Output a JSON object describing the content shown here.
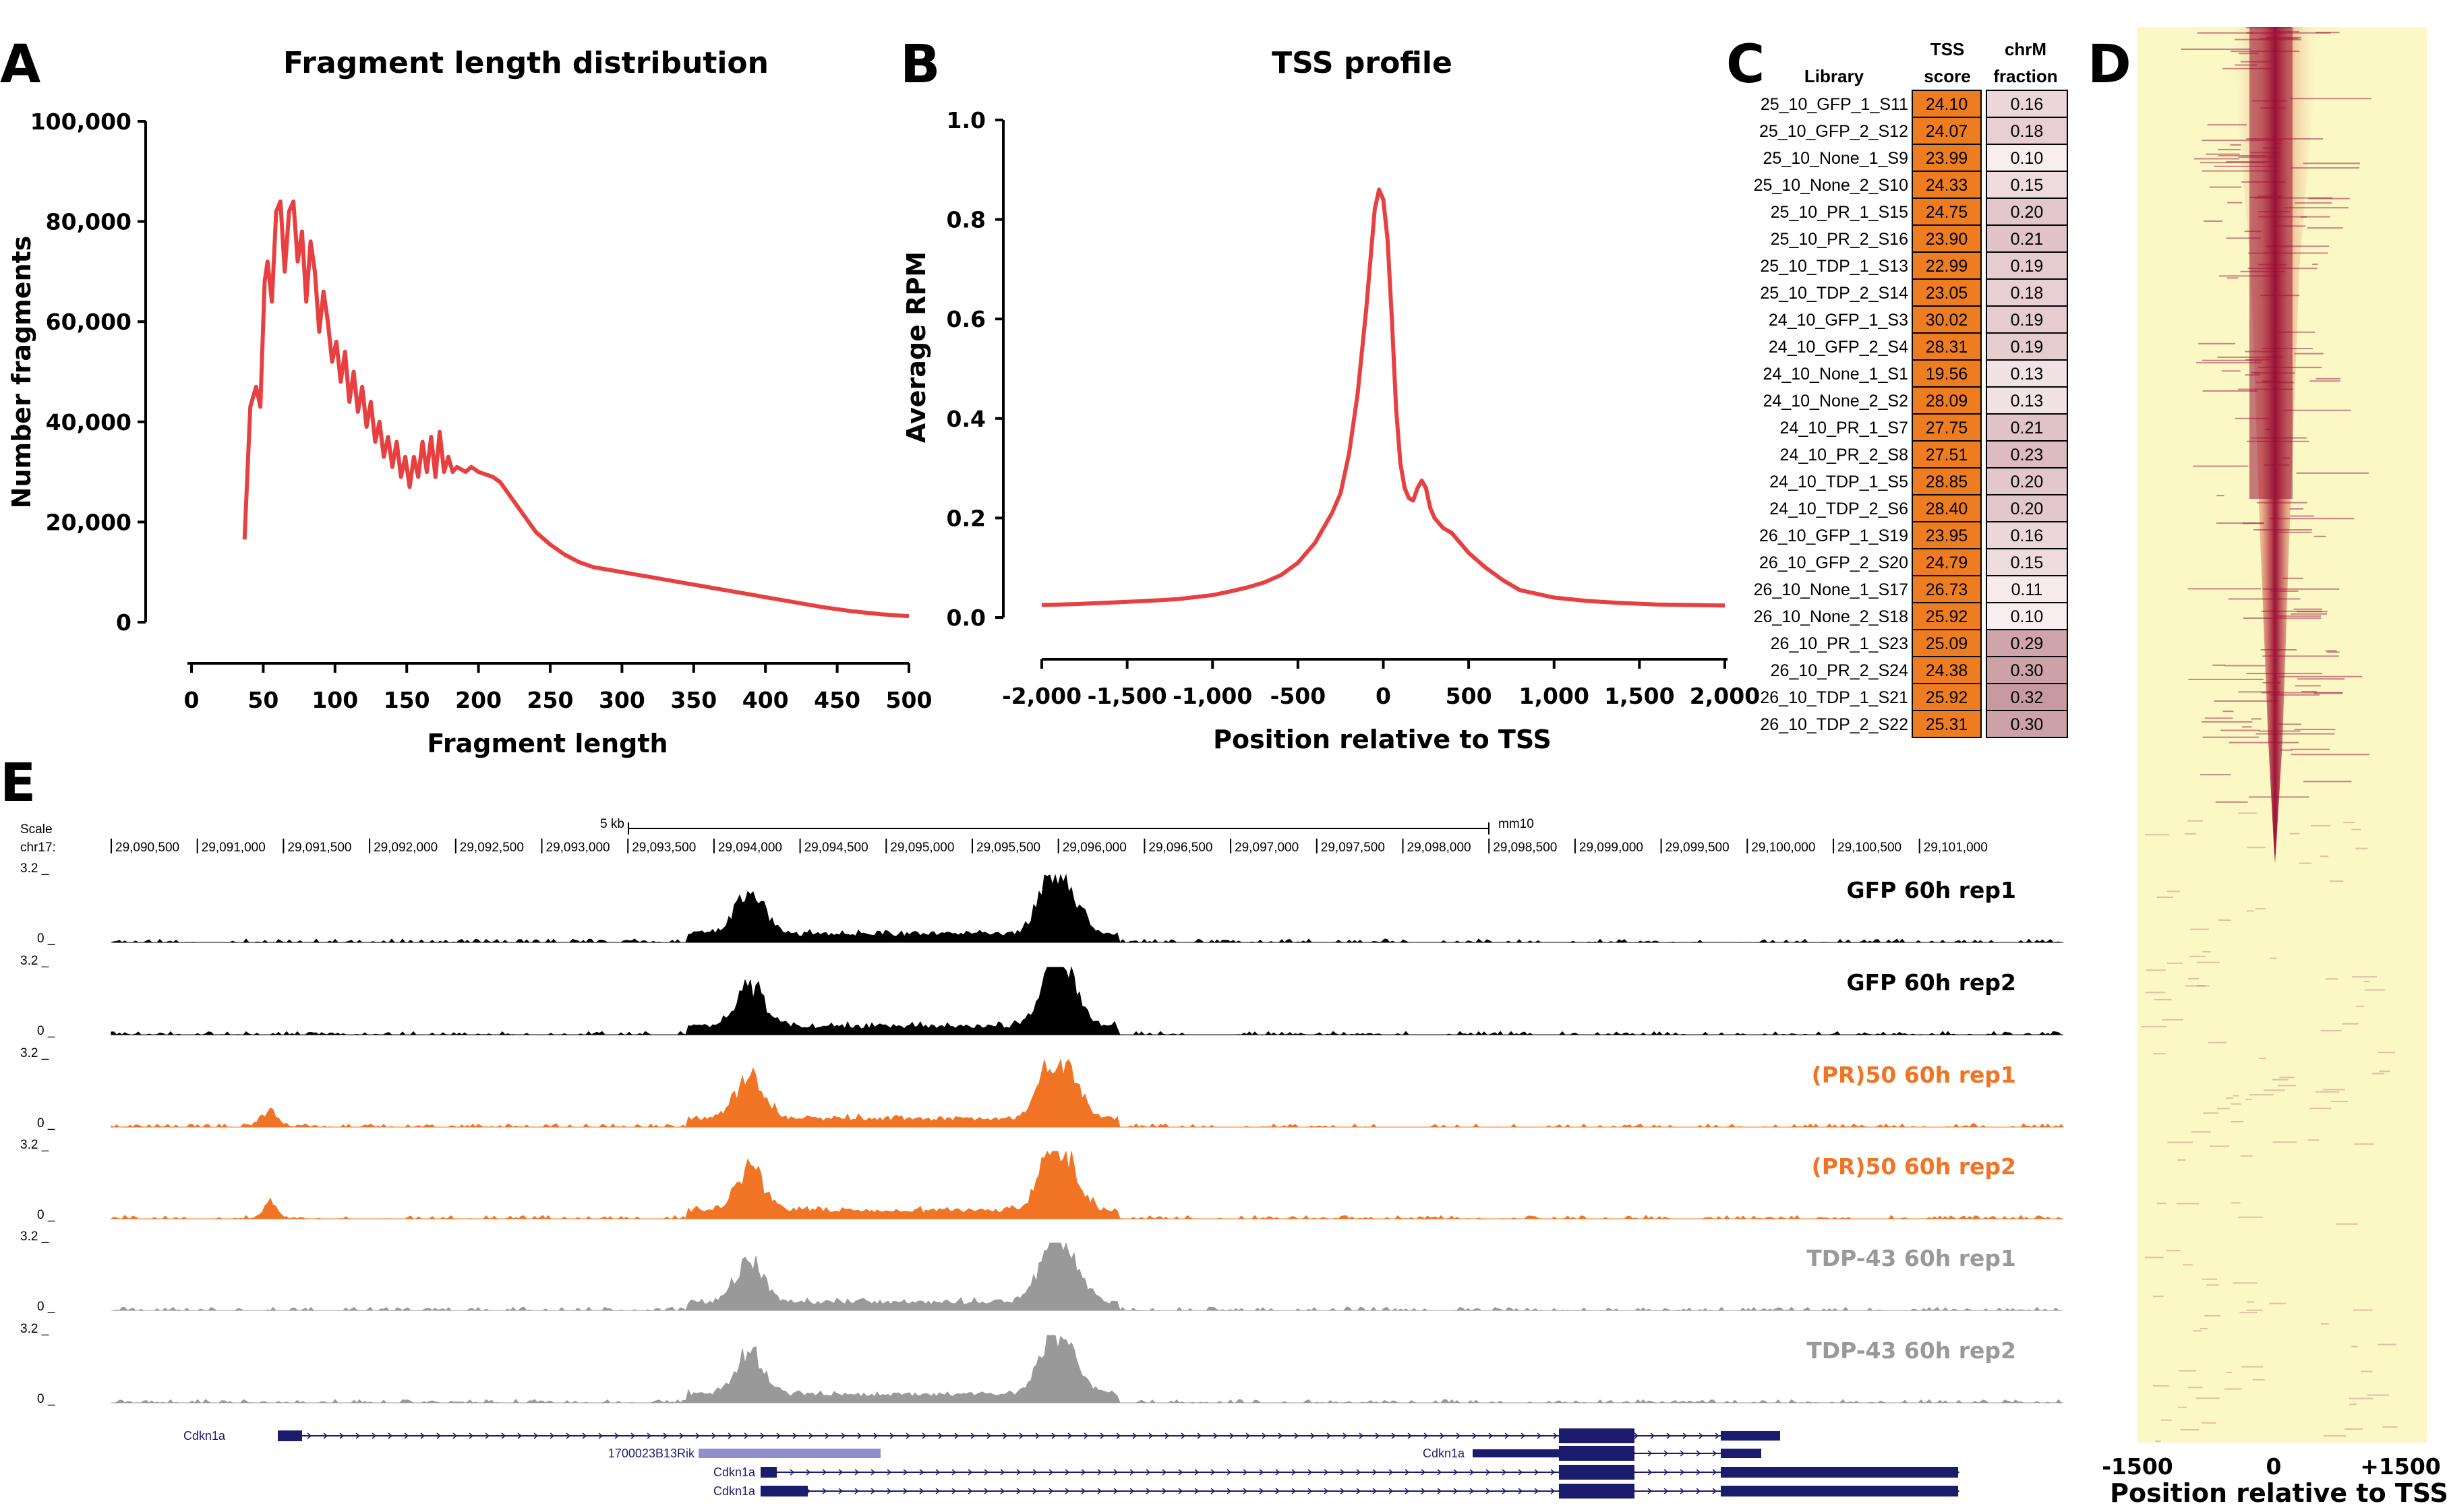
{
  "panels": {
    "a": "A",
    "b": "B",
    "c": "C",
    "d": "D",
    "e": "E"
  },
  "chart_data": [
    {
      "type": "line",
      "title": "Fragment length distribution",
      "xlabel": "Fragment length",
      "ylabel": "Number fragments",
      "xlim": [
        0,
        500
      ],
      "ylim": [
        0,
        100000
      ],
      "xticks": [
        "0",
        "50",
        "100",
        "150",
        "200",
        "250",
        "300",
        "350",
        "400",
        "450",
        "500"
      ],
      "yticks": [
        "0",
        "20,000",
        "40,000",
        "60,000",
        "80,000",
        "100,000"
      ],
      "color": "#e84040",
      "x": [
        37,
        41,
        45,
        48,
        51,
        53,
        56,
        59,
        62,
        65,
        68,
        71,
        74,
        77,
        80,
        83,
        86,
        89,
        92,
        95,
        98,
        101,
        104,
        107,
        110,
        113,
        116,
        119,
        122,
        125,
        128,
        131,
        134,
        137,
        140,
        143,
        146,
        149,
        152,
        155,
        158,
        161,
        164,
        167,
        170,
        173,
        176,
        179,
        182,
        185,
        188,
        191,
        195,
        200,
        205,
        210,
        215,
        220,
        230,
        240,
        250,
        260,
        270,
        280,
        290,
        300,
        310,
        320,
        330,
        340,
        350,
        360,
        370,
        380,
        390,
        400,
        420,
        440,
        460,
        480,
        500
      ],
      "y": [
        16500,
        43000,
        47000,
        43000,
        68000,
        72000,
        64000,
        82000,
        84000,
        70000,
        82000,
        84000,
        72000,
        78000,
        64000,
        76000,
        70000,
        58000,
        66000,
        60000,
        52000,
        56000,
        48000,
        54000,
        44000,
        50000,
        42000,
        47000,
        39000,
        44000,
        36000,
        40000,
        33000,
        37000,
        31000,
        36000,
        29000,
        33000,
        27000,
        33000,
        29000,
        36000,
        30000,
        37000,
        29000,
        38000,
        30000,
        33000,
        30000,
        31000,
        30500,
        30000,
        31000,
        30000,
        29500,
        29000,
        28000,
        26000,
        22000,
        18000,
        15500,
        13500,
        12000,
        11000,
        10500,
        10000,
        9500,
        9000,
        8500,
        8000,
        7500,
        7000,
        6500,
        6000,
        5500,
        5000,
        4000,
        3000,
        2200,
        1600,
        1200
      ]
    },
    {
      "type": "line",
      "title": "TSS profile",
      "xlabel": "Position relative to TSS",
      "ylabel": "Average RPM",
      "xlim": [
        -2000,
        2000
      ],
      "ylim": [
        0,
        1.0
      ],
      "xticks": [
        "-2,000",
        "-1,500",
        "-1,000",
        "-500",
        "0",
        "500",
        "1,000",
        "1,500",
        "2,000"
      ],
      "yticks": [
        "0.0",
        "0.2",
        "0.4",
        "0.6",
        "0.8",
        "1.0"
      ],
      "color": "#e84040",
      "x": [
        -2000,
        -1800,
        -1600,
        -1400,
        -1200,
        -1000,
        -900,
        -800,
        -700,
        -600,
        -500,
        -400,
        -300,
        -250,
        -200,
        -150,
        -100,
        -75,
        -50,
        -25,
        0,
        25,
        50,
        75,
        100,
        125,
        150,
        175,
        200,
        225,
        250,
        275,
        300,
        350,
        400,
        450,
        500,
        600,
        700,
        800,
        1000,
        1200,
        1400,
        1600,
        1800,
        2000
      ],
      "y": [
        0.025,
        0.027,
        0.03,
        0.033,
        0.037,
        0.045,
        0.052,
        0.06,
        0.07,
        0.085,
        0.11,
        0.15,
        0.21,
        0.25,
        0.33,
        0.45,
        0.62,
        0.72,
        0.82,
        0.86,
        0.84,
        0.76,
        0.6,
        0.42,
        0.31,
        0.26,
        0.24,
        0.235,
        0.26,
        0.275,
        0.26,
        0.22,
        0.2,
        0.18,
        0.17,
        0.15,
        0.13,
        0.1,
        0.075,
        0.055,
        0.04,
        0.033,
        0.029,
        0.026,
        0.025,
        0.024
      ]
    },
    {
      "type": "table",
      "columns": [
        "Library",
        "TSS score",
        "chrM fraction"
      ],
      "rows": [
        [
          "25_10_GFP_1_S11",
          "24.10",
          "0.16"
        ],
        [
          "25_10_GFP_2_S12",
          "24.07",
          "0.18"
        ],
        [
          "25_10_None_1_S9",
          "23.99",
          "0.10"
        ],
        [
          "25_10_None_2_S10",
          "24.33",
          "0.15"
        ],
        [
          "25_10_PR_1_S15",
          "24.75",
          "0.20"
        ],
        [
          "25_10_PR_2_S16",
          "23.90",
          "0.21"
        ],
        [
          "25_10_TDP_1_S13",
          "22.99",
          "0.19"
        ],
        [
          "25_10_TDP_2_S14",
          "23.05",
          "0.18"
        ],
        [
          "24_10_GFP_1_S3",
          "30.02",
          "0.19"
        ],
        [
          "24_10_GFP_2_S4",
          "28.31",
          "0.19"
        ],
        [
          "24_10_None_1_S1",
          "19.56",
          "0.13"
        ],
        [
          "24_10_None_2_S2",
          "28.09",
          "0.13"
        ],
        [
          "24_10_PR_1_S7",
          "27.75",
          "0.21"
        ],
        [
          "24_10_PR_2_S8",
          "27.51",
          "0.23"
        ],
        [
          "24_10_TDP_1_S5",
          "28.85",
          "0.20"
        ],
        [
          "24_10_TDP_2_S6",
          "28.40",
          "0.20"
        ],
        [
          "26_10_GFP_1_S19",
          "23.95",
          "0.16"
        ],
        [
          "26_10_GFP_2_S20",
          "24.79",
          "0.15"
        ],
        [
          "26_10_None_1_S17",
          "26.73",
          "0.11"
        ],
        [
          "26_10_None_2_S18",
          "25.92",
          "0.10"
        ],
        [
          "26_10_PR_1_S23",
          "25.09",
          "0.29"
        ],
        [
          "26_10_PR_2_S24",
          "24.38",
          "0.30"
        ],
        [
          "26_10_TDP_1_S21",
          "25.92",
          "0.32"
        ],
        [
          "26_10_TDP_2_S22",
          "25.31",
          "0.30"
        ]
      ],
      "tss_color": "#ee7c21",
      "chrm_color": "#c89aa0"
    },
    {
      "type": "heatmap",
      "xlabel": "Position relative to TSS",
      "xticks": [
        "-1500",
        "0",
        "+1500"
      ],
      "background_color": "#fbf8c6",
      "signal_color": "#9b1036"
    },
    {
      "type": "area",
      "scale_label": "Scale",
      "scale_bar": "5 kb",
      "assembly": "mm10",
      "chrom": "chr17:",
      "coordinates": [
        "29,090,500",
        "29,091,000",
        "29,091,500",
        "29,092,000",
        "29,092,500",
        "29,093,000",
        "29,093,500",
        "29,094,000",
        "29,094,500",
        "29,095,000",
        "29,095,500",
        "29,096,000",
        "29,096,500",
        "29,097,000",
        "29,097,500",
        "29,098,000",
        "29,098,500",
        "29,099,000",
        "29,099,500",
        "29,100,000",
        "29,100,500",
        "29,101,000"
      ],
      "y_max_label": "3.2 _",
      "y_min_label": "0 _",
      "tracks": [
        {
          "name": "GFP 60h rep1",
          "color": "#000000"
        },
        {
          "name": "GFP 60h rep2",
          "color": "#000000"
        },
        {
          "name": "(PR)50 60h rep1",
          "color": "#f07424"
        },
        {
          "name": "(PR)50 60h rep2",
          "color": "#f07424"
        },
        {
          "name": "TDP-43 60h rep1",
          "color": "#999999"
        },
        {
          "name": "TDP-43 60h rep2",
          "color": "#999999"
        }
      ],
      "genes": [
        "Cdkn1a",
        "1700023B13Rik",
        "Cdkn1a",
        "Cdkn1a",
        "Cdkn1a"
      ],
      "gene_color": "#1c1c6e",
      "lnc_color": "#8f8fd0"
    }
  ]
}
